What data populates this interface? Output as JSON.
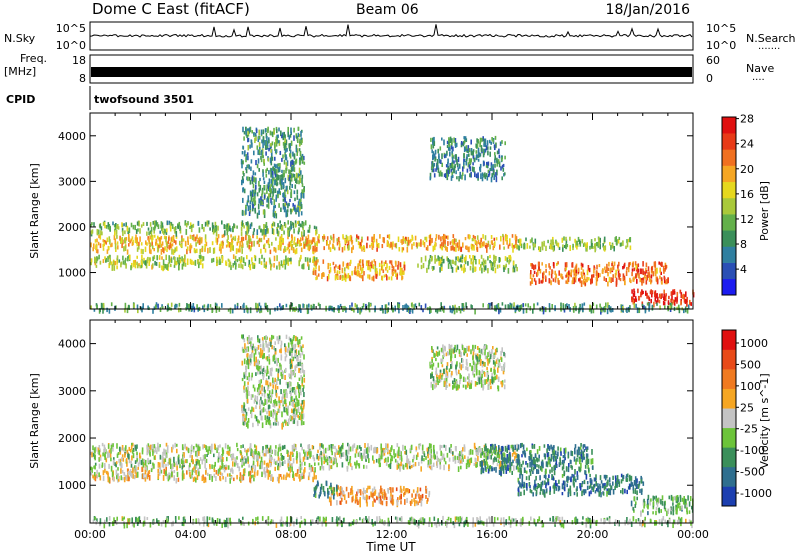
{
  "header": {
    "station": "Dome C East (fitACF)",
    "beam": "Beam 06",
    "date": "18/Jan/2016"
  },
  "panels": {
    "nsky": {
      "label": "N.Sky",
      "right_label": "N.Search",
      "dots": ".......",
      "ticks_left": [
        "10^5",
        "10^0"
      ],
      "ticks_right": [
        "10^5",
        "10^0"
      ]
    },
    "freq": {
      "label_top": "Freq.",
      "label_unit": "[MHz]",
      "right_label": "Nave",
      "dots": "....",
      "ticks_left": [
        "18",
        "8"
      ],
      "ticks_right": [
        "60",
        "0"
      ]
    },
    "cpid": {
      "label": "CPID",
      "value": "twofsound 3501"
    }
  },
  "chart_data": [
    {
      "type": "heatmap",
      "name": "power",
      "ylabel": "Slant Range [km]",
      "xlabel": "",
      "yticks": [
        1000,
        2000,
        3000,
        4000
      ],
      "ylim": [
        200,
        4500
      ],
      "xlim": [
        0,
        24
      ],
      "colorbar": {
        "label": "Power [dB]",
        "ticks": [
          "4",
          "8",
          "12",
          "16",
          "20",
          "24",
          "28"
        ],
        "colors": [
          "#1c1cf0",
          "#2a4fb5",
          "#2f7fa0",
          "#3a8f5a",
          "#63b04a",
          "#a9c93a",
          "#e6d81e",
          "#f5a623",
          "#f07020",
          "#e83a18",
          "#e01010"
        ]
      },
      "bands": [
        {
          "t0": 0.0,
          "t1": 9.0,
          "r0": 1500,
          "r1": 1850,
          "v": 0.65
        },
        {
          "t0": 0.0,
          "t1": 9.0,
          "r0": 1150,
          "r1": 1400,
          "v": 0.5
        },
        {
          "t0": 0.0,
          "t1": 9.0,
          "r0": 1900,
          "r1": 2150,
          "v": 0.4
        },
        {
          "t0": 9.0,
          "t1": 17.0,
          "r0": 1550,
          "r1": 1850,
          "v": 0.7
        },
        {
          "t0": 8.8,
          "t1": 12.5,
          "r0": 900,
          "r1": 1300,
          "v": 0.72
        },
        {
          "t0": 13.0,
          "t1": 17.0,
          "r0": 1100,
          "r1": 1400,
          "v": 0.45
        },
        {
          "t0": 17.0,
          "t1": 21.5,
          "r0": 1550,
          "r1": 1800,
          "v": 0.45
        },
        {
          "t0": 17.5,
          "t1": 23.0,
          "r0": 800,
          "r1": 1250,
          "v": 0.82
        },
        {
          "t0": 21.5,
          "t1": 24.0,
          "r0": 350,
          "r1": 650,
          "v": 0.95
        },
        {
          "t0": 6.0,
          "t1": 8.5,
          "r0": 2300,
          "r1": 4200,
          "v": 0.3
        },
        {
          "t0": 13.5,
          "t1": 16.5,
          "r0": 3100,
          "r1": 4000,
          "v": 0.25
        },
        {
          "t0": 0.0,
          "t1": 24.0,
          "r0": 200,
          "r1": 350,
          "v": 0.3
        }
      ]
    },
    {
      "type": "heatmap",
      "name": "velocity",
      "ylabel": "Slant Range [km]",
      "xlabel": "Time UT",
      "yticks": [
        1000,
        2000,
        3000,
        4000
      ],
      "ylim": [
        200,
        4500
      ],
      "xlim": [
        0,
        24
      ],
      "xticks": [
        "00:00",
        "04:00",
        "08:00",
        "12:00",
        "16:00",
        "20:00",
        "00:00"
      ],
      "colorbar": {
        "label": "Velocity [m s^-1]",
        "ticks": [
          "1000",
          "500",
          "100",
          "25",
          "-25",
          "-100",
          "-500",
          "-1000"
        ],
        "colors": [
          "#1c3fb0",
          "#2f6f8f",
          "#3a8f5a",
          "#6cc43a",
          "#c4c4c4",
          "#f5a623",
          "#f07a20",
          "#e84a18",
          "#e01010"
        ]
      },
      "bands": [
        {
          "t0": 0.0,
          "t1": 17.0,
          "r0": 1400,
          "r1": 1900,
          "v": 0.45
        },
        {
          "t0": 0.0,
          "t1": 9.0,
          "r0": 1150,
          "r1": 1400,
          "v": 0.55
        },
        {
          "t0": 9.5,
          "t1": 13.5,
          "r0": 650,
          "r1": 1000,
          "v": 0.68
        },
        {
          "t0": 8.8,
          "t1": 9.8,
          "r0": 800,
          "r1": 1100,
          "v": 0.2
        },
        {
          "t0": 15.5,
          "t1": 20.0,
          "r0": 1300,
          "r1": 1900,
          "v": 0.2
        },
        {
          "t0": 17.0,
          "t1": 22.0,
          "r0": 850,
          "r1": 1250,
          "v": 0.15
        },
        {
          "t0": 21.5,
          "t1": 24.0,
          "r0": 450,
          "r1": 800,
          "v": 0.35
        },
        {
          "t0": 6.0,
          "t1": 8.5,
          "r0": 2300,
          "r1": 4200,
          "v": 0.45
        },
        {
          "t0": 13.5,
          "t1": 16.5,
          "r0": 3100,
          "r1": 4000,
          "v": 0.45
        },
        {
          "t0": 0.0,
          "t1": 24.0,
          "r0": 200,
          "r1": 350,
          "v": 0.4
        }
      ]
    }
  ]
}
